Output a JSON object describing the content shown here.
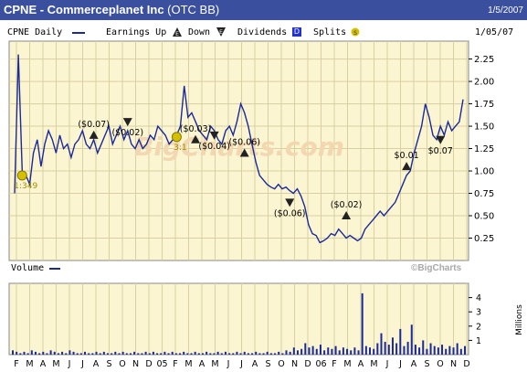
{
  "title_bar": {
    "ticker_name": "CPNE - Commerceplanet Inc",
    "exchange": "(OTC BB)",
    "date": "1/5/2007"
  },
  "legend": {
    "series_label": "CPNE Daily",
    "earnings_up": "Earnings Up",
    "down": "Down",
    "dividends": "Dividends",
    "dividends_icon": "D",
    "splits": "Splits",
    "end_date": "1/05/07"
  },
  "watermark": "BigCharts.com",
  "copyright": "©BigCharts",
  "volume_label": "Volume",
  "millions_label": "Millions",
  "colors": {
    "title_bar": "#3a4f9e",
    "plot_bg": "#fbf5d2",
    "price_line": "#1a2a9a",
    "grid": "#d9cfa0",
    "marker": "#222222",
    "split": "#c8b400"
  },
  "chart_data": [
    {
      "type": "line",
      "name": "CPNE Daily",
      "ylim": [
        0.0,
        2.45
      ],
      "yticks": [
        0.25,
        0.5,
        0.75,
        1.0,
        1.25,
        1.5,
        1.75,
        2.0,
        2.25
      ],
      "ytick_labels": [
        "0.25",
        "0.50",
        "0.75",
        "1.00",
        "1.25",
        "1.50",
        "1.75",
        "2.00",
        "2.25"
      ],
      "x_labels": [
        "F",
        "M",
        "A",
        "M",
        "J",
        "J",
        "A",
        "S",
        "O",
        "N",
        "D",
        "05",
        "F",
        "M",
        "A",
        "M",
        "J",
        "J",
        "A",
        "S",
        "O",
        "N",
        "D",
        "06",
        "F",
        "M",
        "A",
        "M",
        "J",
        "J",
        "A",
        "S",
        "O",
        "N",
        "D"
      ],
      "points": [
        [
          0,
          0.75
        ],
        [
          1,
          2.3
        ],
        [
          2,
          1.0
        ],
        [
          3,
          0.95
        ],
        [
          4,
          0.85
        ],
        [
          5,
          1.2
        ],
        [
          6,
          1.35
        ],
        [
          7,
          1.05
        ],
        [
          8,
          1.3
        ],
        [
          9,
          1.45
        ],
        [
          10,
          1.35
        ],
        [
          11,
          1.2
        ],
        [
          12,
          1.4
        ],
        [
          13,
          1.25
        ],
        [
          14,
          1.3
        ],
        [
          15,
          1.15
        ],
        [
          16,
          1.3
        ],
        [
          17,
          1.35
        ],
        [
          18,
          1.45
        ],
        [
          19,
          1.3
        ],
        [
          20,
          1.25
        ],
        [
          21,
          1.35
        ],
        [
          22,
          1.2
        ],
        [
          23,
          1.3
        ],
        [
          24,
          1.4
        ],
        [
          25,
          1.5
        ],
        [
          26,
          1.3
        ],
        [
          27,
          1.4
        ],
        [
          28,
          1.5
        ],
        [
          29,
          1.35
        ],
        [
          30,
          1.45
        ],
        [
          31,
          1.3
        ],
        [
          32,
          1.25
        ],
        [
          33,
          1.35
        ],
        [
          34,
          1.25
        ],
        [
          35,
          1.3
        ],
        [
          36,
          1.4
        ],
        [
          37,
          1.35
        ],
        [
          38,
          1.5
        ],
        [
          39,
          1.45
        ],
        [
          40,
          1.4
        ],
        [
          41,
          1.3
        ],
        [
          42,
          1.35
        ],
        [
          43,
          1.4
        ],
        [
          44,
          1.5
        ],
        [
          45,
          1.95
        ],
        [
          46,
          1.6
        ],
        [
          47,
          1.65
        ],
        [
          48,
          1.55
        ],
        [
          49,
          1.45
        ],
        [
          50,
          1.4
        ],
        [
          51,
          1.35
        ],
        [
          52,
          1.5
        ],
        [
          53,
          1.45
        ],
        [
          54,
          1.35
        ],
        [
          55,
          1.3
        ],
        [
          56,
          1.45
        ],
        [
          57,
          1.5
        ],
        [
          58,
          1.4
        ],
        [
          59,
          1.55
        ],
        [
          60,
          1.75
        ],
        [
          61,
          1.65
        ],
        [
          62,
          1.5
        ],
        [
          63,
          1.3
        ],
        [
          64,
          1.1
        ],
        [
          65,
          0.95
        ],
        [
          66,
          0.9
        ],
        [
          67,
          0.85
        ],
        [
          68,
          0.82
        ],
        [
          69,
          0.8
        ],
        [
          70,
          0.85
        ],
        [
          71,
          0.8
        ],
        [
          72,
          0.82
        ],
        [
          73,
          0.78
        ],
        [
          74,
          0.75
        ],
        [
          75,
          0.8
        ],
        [
          76,
          0.72
        ],
        [
          77,
          0.6
        ],
        [
          78,
          0.4
        ],
        [
          79,
          0.3
        ],
        [
          80,
          0.28
        ],
        [
          81,
          0.2
        ],
        [
          82,
          0.22
        ],
        [
          83,
          0.25
        ],
        [
          84,
          0.3
        ],
        [
          85,
          0.28
        ],
        [
          86,
          0.35
        ],
        [
          87,
          0.3
        ],
        [
          88,
          0.25
        ],
        [
          89,
          0.28
        ],
        [
          90,
          0.25
        ],
        [
          91,
          0.22
        ],
        [
          92,
          0.25
        ],
        [
          93,
          0.35
        ],
        [
          94,
          0.4
        ],
        [
          95,
          0.45
        ],
        [
          96,
          0.5
        ],
        [
          97,
          0.55
        ],
        [
          98,
          0.5
        ],
        [
          99,
          0.55
        ],
        [
          100,
          0.6
        ],
        [
          101,
          0.65
        ],
        [
          102,
          0.75
        ],
        [
          103,
          0.85
        ],
        [
          104,
          0.95
        ],
        [
          105,
          1.0
        ],
        [
          106,
          1.2
        ],
        [
          107,
          1.35
        ],
        [
          108,
          1.5
        ],
        [
          109,
          1.75
        ],
        [
          110,
          1.6
        ],
        [
          111,
          1.4
        ],
        [
          112,
          1.35
        ],
        [
          113,
          1.5
        ],
        [
          114,
          1.4
        ],
        [
          115,
          1.55
        ],
        [
          116,
          1.45
        ],
        [
          117,
          1.5
        ],
        [
          118,
          1.55
        ],
        [
          119,
          1.8
        ]
      ],
      "events": [
        {
          "label": "1:349",
          "kind": "split",
          "x": 2,
          "y": 0.95
        },
        {
          "label": "($0.07)",
          "kind": "up",
          "x": 21,
          "y": 1.4
        },
        {
          "label": "($0.02)",
          "kind": "down",
          "x": 30,
          "y": 1.55
        },
        {
          "label": "3:1",
          "kind": "split",
          "x": 43,
          "y": 1.38
        },
        {
          "label": "($0.03)",
          "kind": "up",
          "x": 48,
          "y": 1.35
        },
        {
          "label": "($0.04)",
          "kind": "down",
          "x": 53,
          "y": 1.4
        },
        {
          "label": "($0.06)",
          "kind": "up",
          "x": 61,
          "y": 1.2
        },
        {
          "label": "($0.06)",
          "kind": "down",
          "x": 73,
          "y": 0.65
        },
        {
          "label": "($0.02)",
          "kind": "up",
          "x": 88,
          "y": 0.5
        },
        {
          "label": "$0.01",
          "kind": "up",
          "x": 104,
          "y": 1.05
        },
        {
          "label": "$0.07",
          "kind": "down",
          "x": 113,
          "y": 1.35
        }
      ]
    },
    {
      "type": "bar",
      "name": "Volume",
      "unit": "Millions",
      "ylim": [
        0,
        5
      ],
      "yticks": [
        1,
        2,
        3,
        4
      ],
      "ytick_labels": [
        "1",
        "2",
        "3",
        "4"
      ],
      "values": [
        0.3,
        0.2,
        0.1,
        0.2,
        0.1,
        0.3,
        0.2,
        0.1,
        0.2,
        0.1,
        0.3,
        0.2,
        0.1,
        0.2,
        0.1,
        0.3,
        0.2,
        0.1,
        0.1,
        0.2,
        0.1,
        0.1,
        0.2,
        0.1,
        0.2,
        0.1,
        0.1,
        0.2,
        0.1,
        0.2,
        0.1,
        0.1,
        0.2,
        0.1,
        0.1,
        0.2,
        0.1,
        0.2,
        0.1,
        0.1,
        0.2,
        0.1,
        0.2,
        0.1,
        0.1,
        0.2,
        0.1,
        0.1,
        0.2,
        0.1,
        0.1,
        0.2,
        0.1,
        0.1,
        0.2,
        0.1,
        0.2,
        0.1,
        0.1,
        0.2,
        0.1,
        0.2,
        0.1,
        0.1,
        0.2,
        0.1,
        0.1,
        0.2,
        0.1,
        0.1,
        0.2,
        0.1,
        0.3,
        0.2,
        0.5,
        0.3,
        0.4,
        0.8,
        0.5,
        0.6,
        0.4,
        0.7,
        0.3,
        0.5,
        0.4,
        0.6,
        0.3,
        0.5,
        0.4,
        0.3,
        0.5,
        0.3,
        4.3,
        0.6,
        0.5,
        0.4,
        0.8,
        1.5,
        0.9,
        0.7,
        1.2,
        0.8,
        1.8,
        0.6,
        0.9,
        2.1,
        0.7,
        0.5,
        1.0,
        0.4,
        0.8,
        0.6,
        0.5,
        0.7,
        0.4,
        0.6,
        0.5,
        0.8,
        0.4,
        0.6
      ]
    }
  ]
}
